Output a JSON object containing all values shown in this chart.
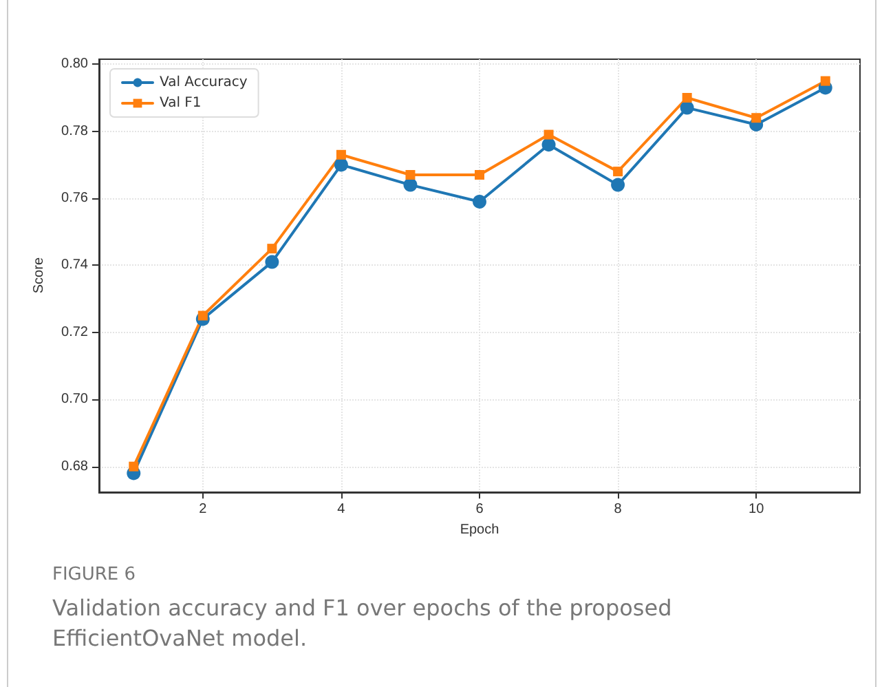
{
  "chart_data": {
    "type": "line",
    "xlabel": "Epoch",
    "ylabel": "Score",
    "x": [
      1,
      2,
      3,
      4,
      5,
      6,
      7,
      8,
      9,
      10,
      11
    ],
    "series": [
      {
        "name": "Val Accuracy",
        "color": "#1f77b4",
        "marker": "circle",
        "values": [
          0.678,
          0.724,
          0.741,
          0.77,
          0.764,
          0.759,
          0.776,
          0.764,
          0.787,
          0.782,
          0.793
        ]
      },
      {
        "name": "Val F1",
        "color": "#ff7f0e",
        "marker": "square",
        "values": [
          0.68,
          0.725,
          0.745,
          0.773,
          0.767,
          0.767,
          0.779,
          0.768,
          0.79,
          0.784,
          0.795
        ]
      }
    ],
    "xlim": [
      0.5,
      11.5
    ],
    "xticks": [
      2,
      4,
      6,
      8,
      10
    ],
    "ylim": [
      0.6725,
      0.8015
    ],
    "yticks": [
      0.68,
      {
        "value": 0.7,
        "label": "0.70"
      },
      0.72,
      0.74,
      0.76,
      0.78,
      {
        "value": 0.8,
        "label": "0.80"
      }
    ],
    "grid": true,
    "legend": "top left",
    "line_style": "solid",
    "annotations": [
      "FIGURE 6",
      "Validation accuracy and F1 over epochs of the proposed EfficientOvaNet model."
    ]
  }
}
